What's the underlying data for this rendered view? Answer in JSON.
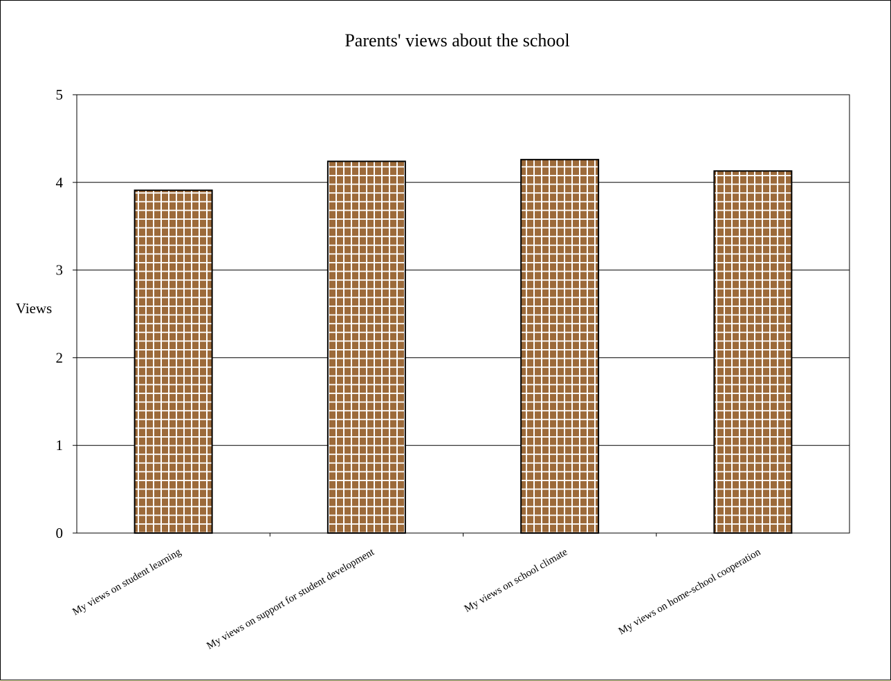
{
  "chart_data": {
    "type": "bar",
    "title": "Parents' views about the school",
    "ylabel": "Views",
    "xlabel": "",
    "categories": [
      "My views on student learning",
      "My views on support for student development",
      "My views on school climate",
      "My views on home-school cooperation"
    ],
    "values": [
      3.91,
      4.24,
      4.26,
      4.13
    ],
    "ylim": [
      0,
      5
    ],
    "yticks": [
      "0",
      "1",
      "2",
      "3",
      "4",
      "5"
    ],
    "grid": true,
    "bar_color": "#9c6a3a",
    "bar_pattern": "white grid",
    "legend": "none"
  }
}
